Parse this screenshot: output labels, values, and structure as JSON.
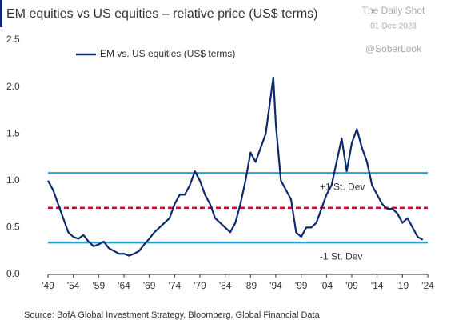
{
  "chart_data": {
    "type": "line",
    "title": "EM equities vs US equities – relative price (US$ terms)",
    "watermark": [
      "The Daily Shot",
      "01-Dec-2023",
      "@SoberLook"
    ],
    "source": "Source: BofA Global Investment Strategy, Bloomberg, Global Financial Data",
    "x": [
      1949,
      1950,
      1951,
      1952,
      1953,
      1954,
      1955,
      1956,
      1957,
      1958,
      1959,
      1960,
      1961,
      1962,
      1963,
      1964,
      1965,
      1966,
      1967,
      1968,
      1969,
      1970,
      1971,
      1972,
      1973,
      1974,
      1975,
      1976,
      1977,
      1978,
      1979,
      1980,
      1981,
      1982,
      1983,
      1984,
      1985,
      1986,
      1987,
      1988,
      1989,
      1990,
      1991,
      1992,
      1993,
      1993.5,
      1994,
      1995,
      1996,
      1997,
      1998,
      1999,
      2000,
      2001,
      2002,
      2003,
      2004,
      2005,
      2006,
      2007,
      2008,
      2009,
      2010,
      2011,
      2012,
      2013,
      2014,
      2015,
      2016,
      2017,
      2018,
      2019,
      2020,
      2021,
      2022,
      2023
    ],
    "series": [
      {
        "name": "EM vs. US equities (US$ terms)",
        "color": "#0c2a6b",
        "values": [
          1.0,
          0.9,
          0.75,
          0.6,
          0.45,
          0.4,
          0.38,
          0.42,
          0.35,
          0.3,
          0.32,
          0.35,
          0.28,
          0.25,
          0.22,
          0.22,
          0.2,
          0.22,
          0.25,
          0.32,
          0.38,
          0.45,
          0.5,
          0.55,
          0.6,
          0.75,
          0.85,
          0.85,
          0.95,
          1.1,
          1.0,
          0.85,
          0.75,
          0.6,
          0.55,
          0.5,
          0.45,
          0.55,
          0.75,
          1.0,
          1.3,
          1.2,
          1.35,
          1.5,
          1.9,
          2.1,
          1.6,
          1.0,
          0.9,
          0.8,
          0.45,
          0.4,
          0.5,
          0.5,
          0.55,
          0.7,
          0.85,
          0.95,
          1.2,
          1.45,
          1.1,
          1.4,
          1.55,
          1.35,
          1.2,
          0.95,
          0.85,
          0.75,
          0.7,
          0.7,
          0.65,
          0.55,
          0.6,
          0.5,
          0.4,
          0.37
        ]
      }
    ],
    "reference_lines": [
      {
        "value": 1.08,
        "label": "+1 St. Dev",
        "color": "#29a3d6",
        "style": "solid"
      },
      {
        "value": 0.71,
        "color": "#c8102e",
        "style": "dashed"
      },
      {
        "value": 0.34,
        "label": "-1 St. Dev",
        "color": "#29a3d6",
        "style": "solid"
      }
    ],
    "xlim": [
      1949,
      2024
    ],
    "xticks": [
      {
        "value": 1949,
        "label": "'49"
      },
      {
        "value": 1954,
        "label": "'54"
      },
      {
        "value": 1959,
        "label": "'59"
      },
      {
        "value": 1964,
        "label": "'64"
      },
      {
        "value": 1969,
        "label": "'69"
      },
      {
        "value": 1974,
        "label": "'74"
      },
      {
        "value": 1979,
        "label": "'79"
      },
      {
        "value": 1984,
        "label": "'84"
      },
      {
        "value": 1989,
        "label": "'89"
      },
      {
        "value": 1994,
        "label": "'94"
      },
      {
        "value": 1999,
        "label": "'99"
      },
      {
        "value": 2004,
        "label": "'04"
      },
      {
        "value": 2009,
        "label": "'09"
      },
      {
        "value": 2014,
        "label": "'14"
      },
      {
        "value": 2019,
        "label": "'19"
      },
      {
        "value": 2024,
        "label": "'24"
      }
    ],
    "ylim": [
      0,
      2.5
    ],
    "yticks": [
      {
        "value": 0,
        "label": "0.0"
      },
      {
        "value": 0.5,
        "label": "0.5"
      },
      {
        "value": 1,
        "label": "1.0"
      },
      {
        "value": 1.5,
        "label": "1.5"
      },
      {
        "value": 2,
        "label": "2.0"
      },
      {
        "value": 2.5,
        "label": "2.5"
      }
    ],
    "legend": "upper left"
  }
}
